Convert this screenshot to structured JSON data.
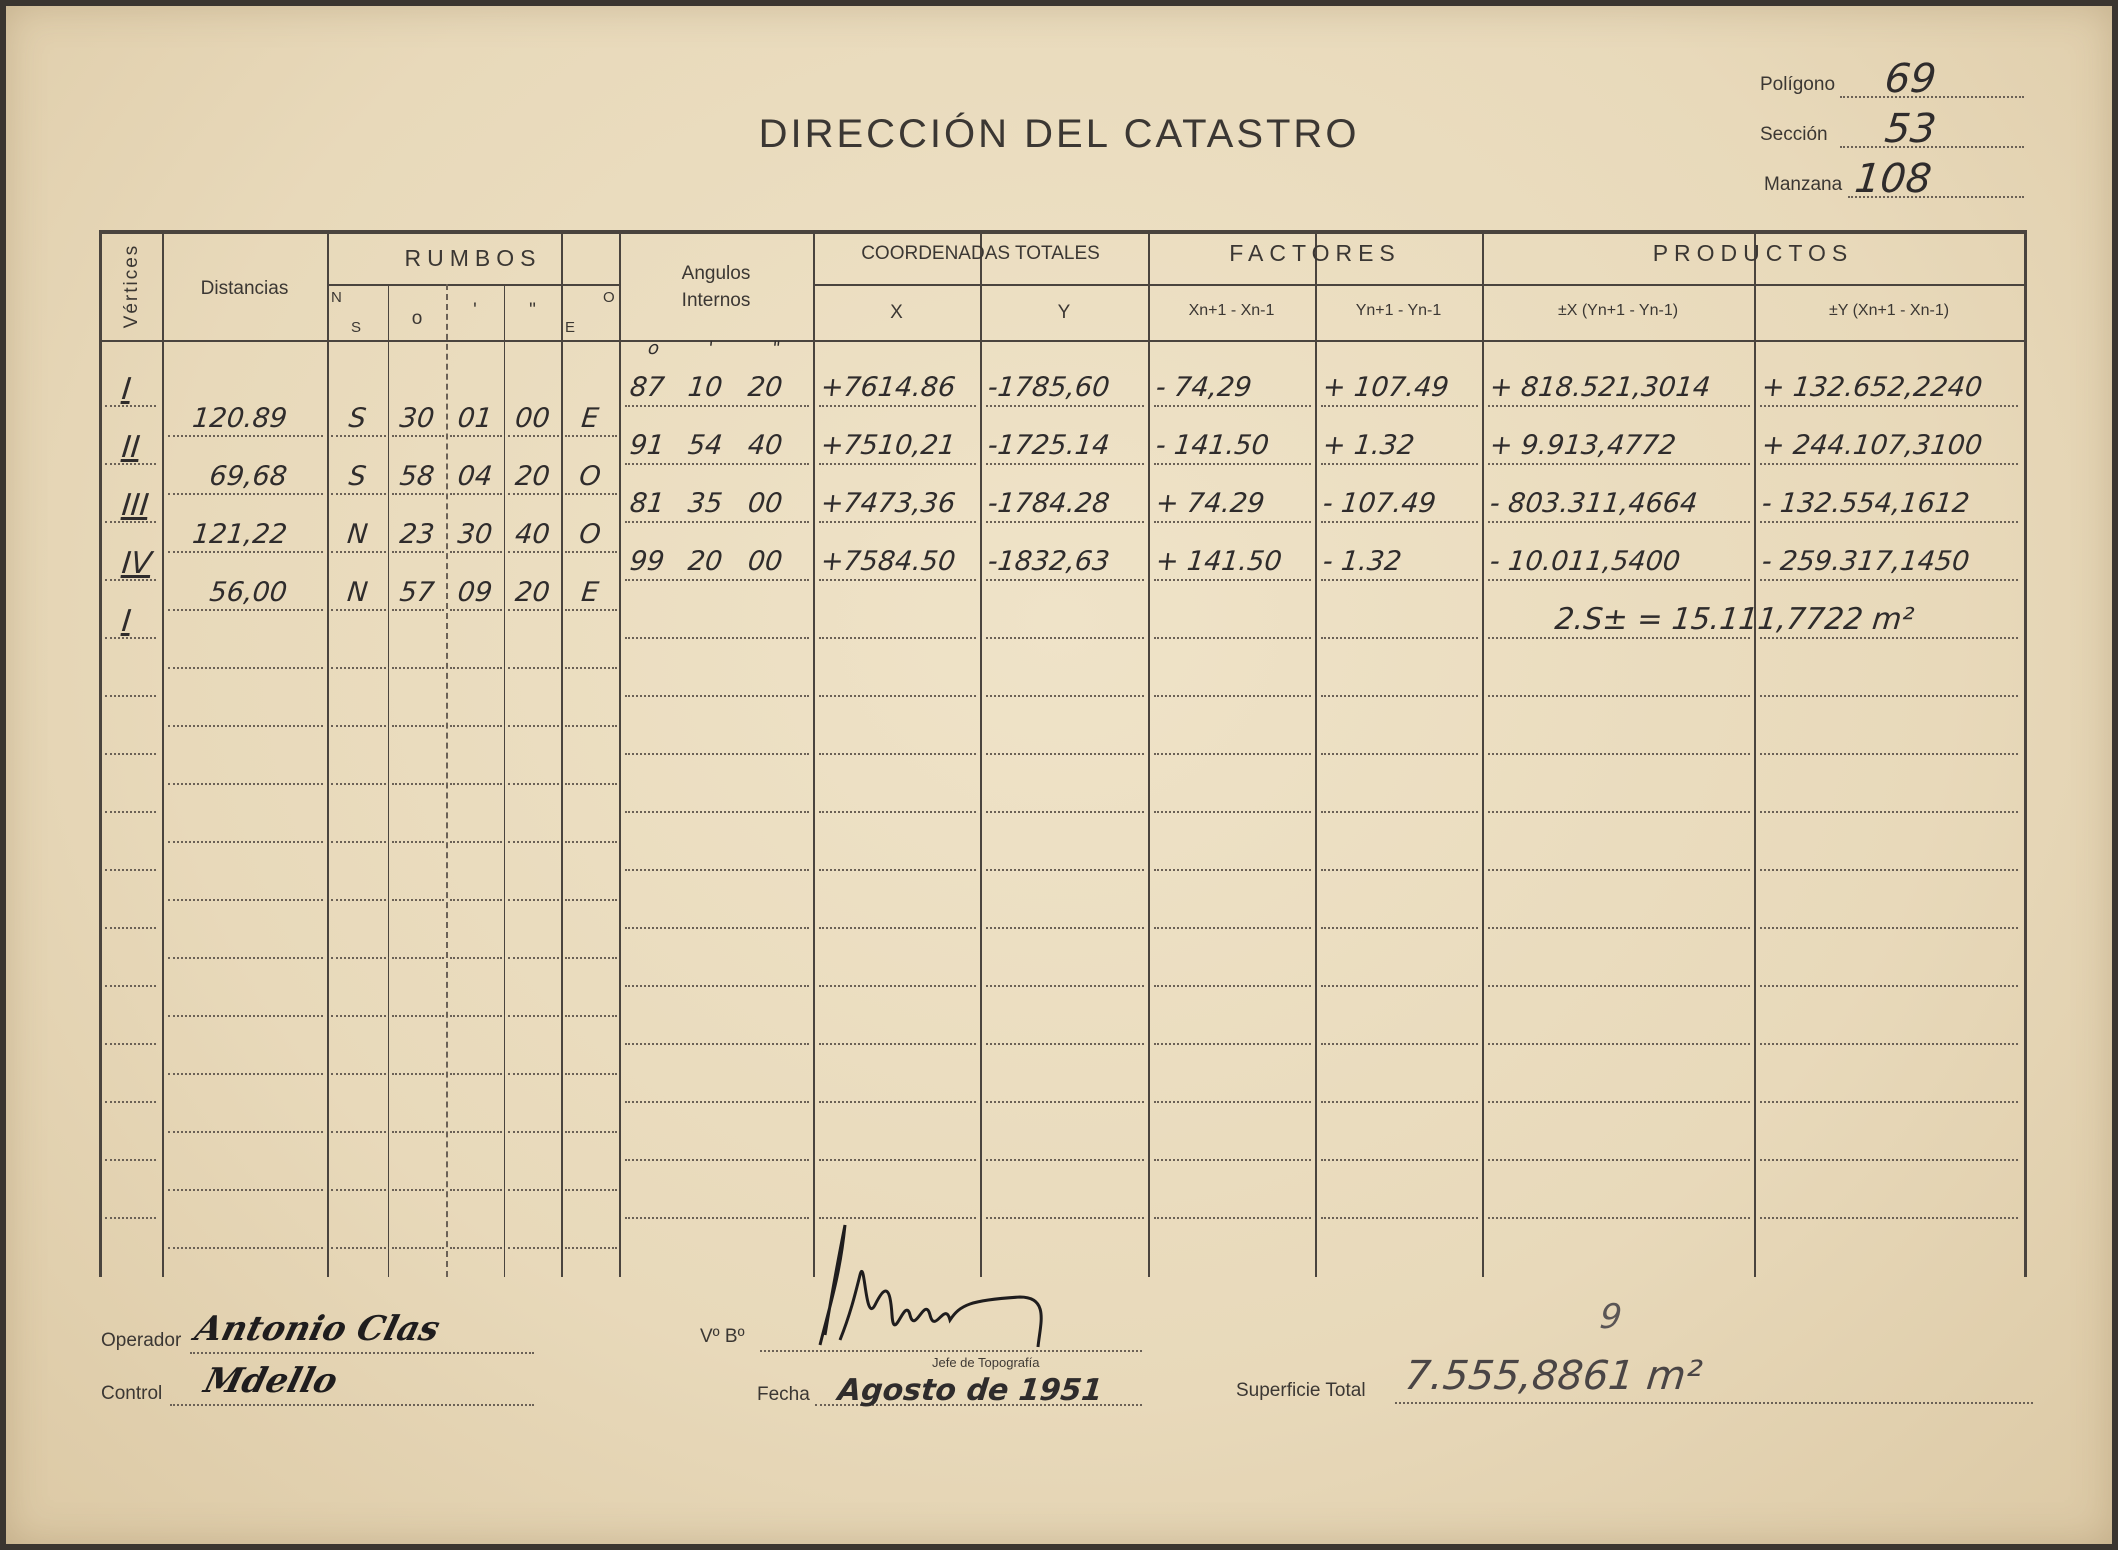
{
  "title": "DIRECCIÓN DEL CATASTRO",
  "ids": {
    "poligono_label": "Polígono",
    "poligono": "69",
    "seccion_label": "Sección",
    "seccion": "53",
    "manzana_label": "Manzana",
    "manzana": "108"
  },
  "headers": {
    "vertices": "Vértices",
    "distancias": "Distancias",
    "rumbos": "RUMBOS",
    "rumbos_ns_n": "N",
    "rumbos_ns_s": "S",
    "rumbos_deg": "o",
    "rumbos_min": "'",
    "rumbos_sec": "\"",
    "rumbos_eo_o": "O",
    "rumbos_eo_e": "E",
    "angulos": "Angulos",
    "internos": "Internos",
    "coordenadas": "COORDENADAS TOTALES",
    "x": "X",
    "y": "Y",
    "factores": "FACTORES",
    "factor_x": "Xn+1 - Xn-1",
    "factor_y": "Yn+1 - Yn-1",
    "productos": "PRODUCTOS",
    "producto_x": "±X (Yn+1 - Yn-1)",
    "producto_y": "±Y (Xn+1 - Xn-1)"
  },
  "angle_units": [
    "o",
    "'",
    "\""
  ],
  "vertices": [
    "I",
    "II",
    "III",
    "IV",
    "I"
  ],
  "courses": [
    {
      "distance": "120.89",
      "ns": "S",
      "deg": "30",
      "min": "01",
      "sec": "00",
      "eo": "E"
    },
    {
      "distance": "69,68",
      "ns": "S",
      "deg": "58",
      "min": "04",
      "sec": "20",
      "eo": "O"
    },
    {
      "distance": "121,22",
      "ns": "N",
      "deg": "23",
      "min": "30",
      "sec": "40",
      "eo": "O"
    },
    {
      "distance": "56,00",
      "ns": "N",
      "deg": "57",
      "min": "09",
      "sec": "20",
      "eo": "E"
    }
  ],
  "points": [
    {
      "deg": "87",
      "min": "10",
      "sec": "20",
      "x": "+7614.86",
      "y": "-1785,60",
      "dx": "- 74,29",
      "dy": "+ 107.49",
      "px": "+ 818.521,3014",
      "py": "+ 132.652,2240"
    },
    {
      "deg": "91",
      "min": "54",
      "sec": "40",
      "x": "+7510,21",
      "y": "-1725.14",
      "dx": "- 141.50",
      "dy": "+ 1.32",
      "px": "+ 9.913,4772",
      "py": "+ 244.107,3100"
    },
    {
      "deg": "81",
      "min": "35",
      "sec": "00",
      "x": "+7473,36",
      "y": "-1784.28",
      "dx": "+ 74.29",
      "dy": "- 107.49",
      "px": "- 803.311,4664",
      "py": "- 132.554,1612"
    },
    {
      "deg": "99",
      "min": "20",
      "sec": "00",
      "x": "+7584.50",
      "y": "-1832,63",
      "dx": "+ 141.50",
      "dy": "- 1.32",
      "px": "- 10.011,5400",
      "py": "- 259.317,1450"
    }
  ],
  "sum": "2.S± = 15.111,7722 m²",
  "footer": {
    "operador_label": "Operador",
    "operador_signature": "Antonio Clas",
    "control_label": "Control",
    "control_signature": "Mdello",
    "vobo_label": "Vº Bº",
    "jefe_label": "Jefe de Topografía",
    "fecha_label": "Fecha",
    "fecha": "Agosto de 1951",
    "superficie_label": "Superficie Total",
    "superficie": "7.555,8861 m²",
    "superficie_note": "9"
  }
}
